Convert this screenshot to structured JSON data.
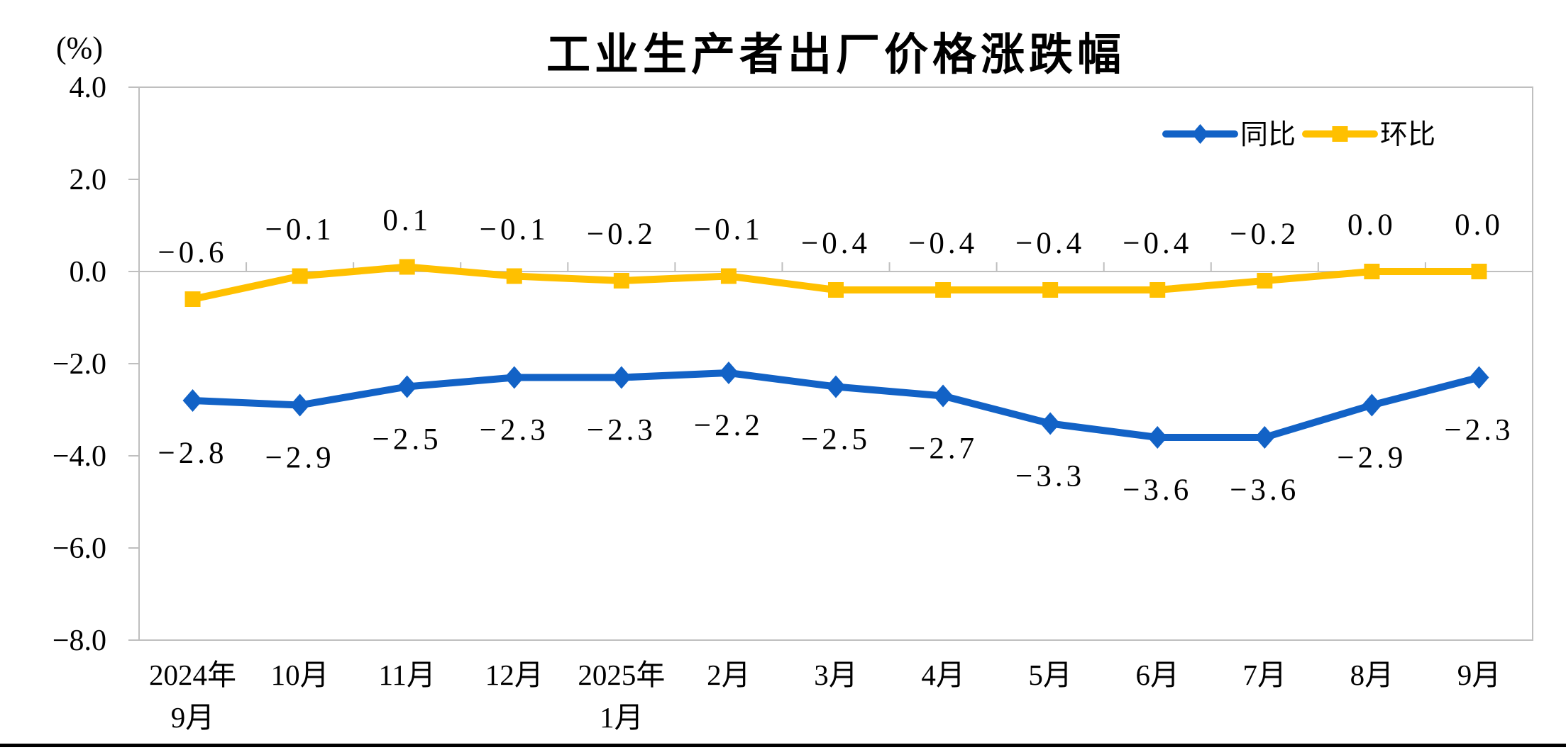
{
  "page": {
    "background": "#FFFFFF",
    "bottom_divider_color": "#000000"
  },
  "chart_data": {
    "type": "line",
    "title": "工业生产者出厂价格涨跌幅",
    "ylabel": "(%)",
    "ylim": [
      -8.0,
      4.0
    ],
    "yticks": [
      "4.0",
      "2.0",
      "0.0",
      "-2.0",
      "-4.0",
      "-6.0",
      "-8.0"
    ],
    "grid": false,
    "legend_position": "top-right-inside",
    "axis_color": "#BFBFBF",
    "text_color": "#000000",
    "categories": [
      "2024年9月",
      "10月",
      "11月",
      "12月",
      "2025年1月",
      "2月",
      "3月",
      "4月",
      "5月",
      "6月",
      "7月",
      "8月",
      "9月"
    ],
    "categories_display": [
      [
        "2024年",
        "9月"
      ],
      [
        "10月"
      ],
      [
        "11月"
      ],
      [
        "12月"
      ],
      [
        "2025年",
        "1月"
      ],
      [
        "2月"
      ],
      [
        "3月"
      ],
      [
        "4月"
      ],
      [
        "5月"
      ],
      [
        "6月"
      ],
      [
        "7月"
      ],
      [
        "8月"
      ],
      [
        "9月"
      ]
    ],
    "series": [
      {
        "name": "同比",
        "color": "#1262C6",
        "marker": "diamond",
        "label_position": "below",
        "values": [
          -2.8,
          -2.9,
          -2.5,
          -2.3,
          -2.3,
          -2.2,
          -2.5,
          -2.7,
          -3.3,
          -3.6,
          -3.6,
          -2.9,
          -2.3
        ],
        "labels": [
          "-2.8",
          "-2.9",
          "-2.5",
          "-2.3",
          "-2.3",
          "-2.2",
          "-2.5",
          "-2.7",
          "-3.3",
          "-3.6",
          "-3.6",
          "-2.9",
          "-2.3"
        ]
      },
      {
        "name": "环比",
        "color": "#FFC000",
        "marker": "square",
        "label_position": "above",
        "values": [
          -0.6,
          -0.1,
          0.1,
          -0.1,
          -0.2,
          -0.1,
          -0.4,
          -0.4,
          -0.4,
          -0.4,
          -0.2,
          0.0,
          0.0
        ],
        "labels": [
          "-0.6",
          "-0.1",
          "0.1",
          "-0.1",
          "-0.2",
          "-0.1",
          "-0.4",
          "-0.4",
          "-0.4",
          "-0.4",
          "-0.2",
          "0.0",
          "0.0"
        ]
      }
    ]
  }
}
